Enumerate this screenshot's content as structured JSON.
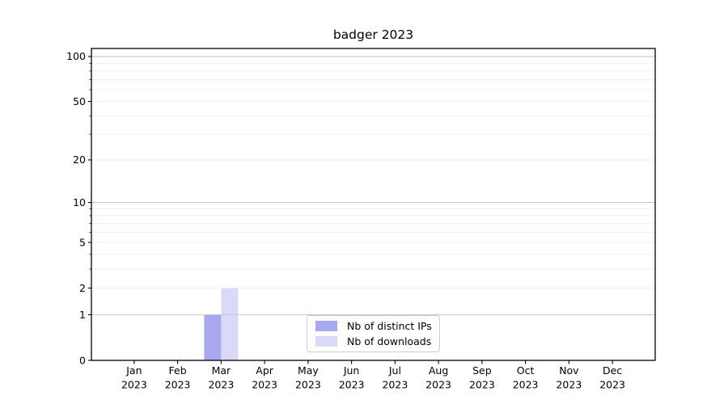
{
  "chart": {
    "title": "badger 2023"
  },
  "chart_data": {
    "type": "bar",
    "title": "badger 2023",
    "x_months": [
      "Jan",
      "Feb",
      "Mar",
      "Apr",
      "May",
      "Jun",
      "Jul",
      "Aug",
      "Sep",
      "Oct",
      "Nov",
      "Dec"
    ],
    "x_year": "2023",
    "categories": [
      "Jan 2023",
      "Feb 2023",
      "Mar 2023",
      "Apr 2023",
      "May 2023",
      "Jun 2023",
      "Jul 2023",
      "Aug 2023",
      "Sep 2023",
      "Oct 2023",
      "Nov 2023",
      "Dec 2023"
    ],
    "series": [
      {
        "name": "Nb of distinct IPs",
        "color": "#a8a8f0",
        "values": [
          0,
          0,
          1,
          0,
          0,
          0,
          0,
          0,
          0,
          0,
          0,
          0
        ]
      },
      {
        "name": "Nb of downloads",
        "color": "#dadaf8",
        "values": [
          0,
          0,
          2,
          0,
          0,
          0,
          0,
          0,
          0,
          0,
          0,
          0
        ]
      }
    ],
    "yscale": "log1p",
    "ylim": [
      0,
      113
    ],
    "xlabel": "",
    "ylabel": "",
    "y_tick_values": [
      0,
      1,
      2,
      5,
      10,
      20,
      50,
      100
    ],
    "y_tick_labels": [
      "0",
      "1",
      "2",
      "5",
      "10",
      "20",
      "50",
      "100"
    ],
    "y_decade_gridlines": [
      1,
      10,
      100
    ],
    "y_faint_gridlines": [
      2,
      3,
      4,
      5,
      6,
      7,
      8,
      9,
      20,
      30,
      40,
      50,
      60,
      70,
      80,
      90
    ],
    "y_minor_ticks": [
      3,
      4,
      6,
      7,
      8,
      9,
      30,
      40,
      60,
      70,
      80,
      90
    ],
    "grid": "horizontal",
    "legend_position": "lower center",
    "colors": {
      "decade_gridline": "#c8c8c8",
      "minor_gridline": "#efefef",
      "axis": "#000000",
      "text": "#000000",
      "background": "#ffffff"
    }
  }
}
